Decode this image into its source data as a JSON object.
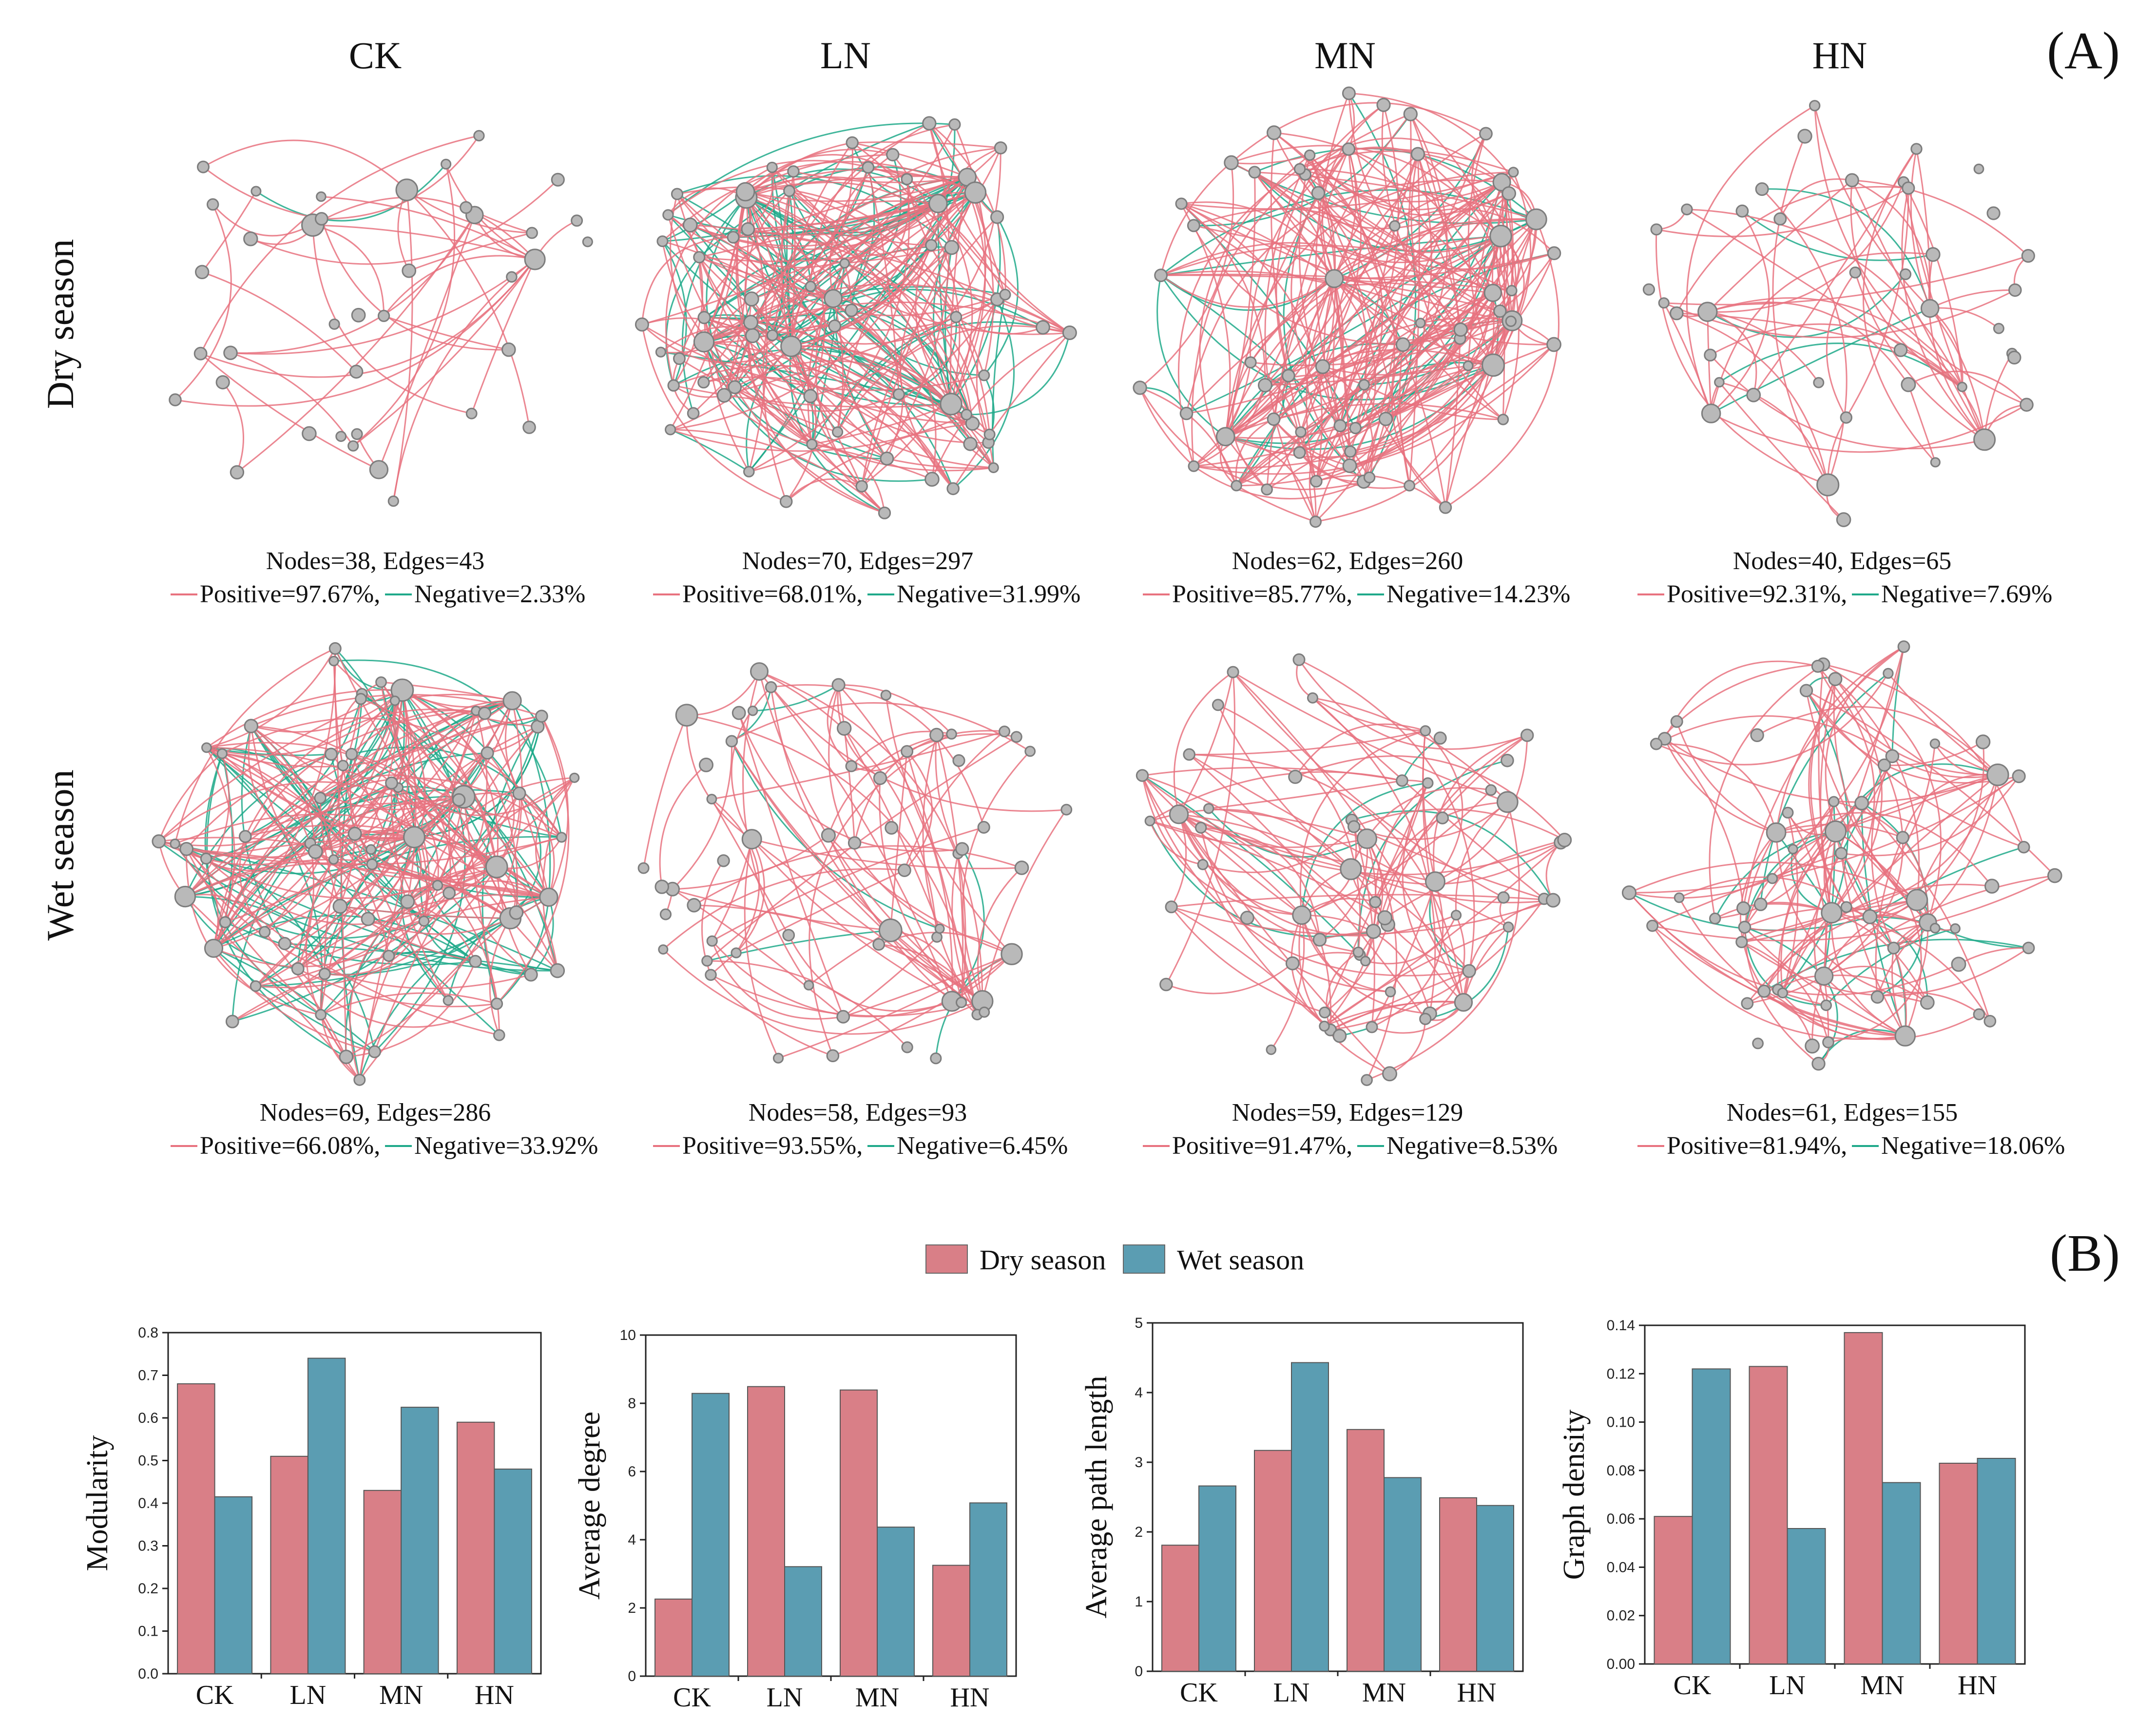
{
  "panel_labels": {
    "a": "(A)",
    "b": "(B)"
  },
  "columns": [
    "CK",
    "LN",
    "MN",
    "HN"
  ],
  "rows": [
    "Dry season",
    "Wet season"
  ],
  "colors": {
    "positive": "#e8727f",
    "negative": "#1fa98a",
    "node_fill": "#b9b9b9",
    "node_stroke": "#7d7d7d",
    "dry": "#d97f87",
    "wet": "#5b9db2"
  },
  "networks": [
    {
      "row": "Dry season",
      "group": "CK",
      "nodes": 38,
      "edges": 43,
      "positive_pct": 97.67,
      "negative_pct": 2.33,
      "stats": "Nodes=38, Edges=43",
      "legend_pos": "Positive=97.67%,",
      "legend_neg": "Negative=2.33%"
    },
    {
      "row": "Dry season",
      "group": "LN",
      "nodes": 70,
      "edges": 297,
      "positive_pct": 68.01,
      "negative_pct": 31.99,
      "stats": "Nodes=70, Edges=297",
      "legend_pos": "Positive=68.01%,",
      "legend_neg": "Negative=31.99%"
    },
    {
      "row": "Dry season",
      "group": "MN",
      "nodes": 62,
      "edges": 260,
      "positive_pct": 85.77,
      "negative_pct": 14.23,
      "stats": "Nodes=62, Edges=260",
      "legend_pos": "Positive=85.77%,",
      "legend_neg": "Negative=14.23%"
    },
    {
      "row": "Dry season",
      "group": "HN",
      "nodes": 40,
      "edges": 65,
      "positive_pct": 92.31,
      "negative_pct": 7.69,
      "stats": "Nodes=40, Edges=65",
      "legend_pos": "Positive=92.31%,",
      "legend_neg": "Negative=7.69%"
    },
    {
      "row": "Wet season",
      "group": "CK",
      "nodes": 69,
      "edges": 286,
      "positive_pct": 66.08,
      "negative_pct": 33.92,
      "stats": "Nodes=69, Edges=286",
      "legend_pos": "Positive=66.08%,",
      "legend_neg": "Negative=33.92%"
    },
    {
      "row": "Wet season",
      "group": "LN",
      "nodes": 58,
      "edges": 93,
      "positive_pct": 93.55,
      "negative_pct": 6.45,
      "stats": "Nodes=58, Edges=93",
      "legend_pos": "Positive=93.55%,",
      "legend_neg": "Negative=6.45%"
    },
    {
      "row": "Wet season",
      "group": "MN",
      "nodes": 59,
      "edges": 129,
      "positive_pct": 91.47,
      "negative_pct": 8.53,
      "stats": "Nodes=59, Edges=129",
      "legend_pos": "Positive=91.47%,",
      "legend_neg": "Negative=8.53%"
    },
    {
      "row": "Wet season",
      "group": "HN",
      "nodes": 61,
      "edges": 155,
      "positive_pct": 81.94,
      "negative_pct": 18.06,
      "stats": "Nodes=61, Edges=155",
      "legend_pos": "Positive=81.94%,",
      "legend_neg": "Negative=18.06%"
    }
  ],
  "legend": {
    "dry": "Dry season",
    "wet": "Wet season"
  },
  "chart_data": [
    {
      "type": "bar",
      "title": "",
      "xlabel": "",
      "ylabel": "Modularity",
      "categories": [
        "CK",
        "LN",
        "MN",
        "HN"
      ],
      "ylim": [
        0,
        0.8
      ],
      "yticks": [
        "0.0",
        "0.1",
        "0.2",
        "0.3",
        "0.4",
        "0.5",
        "0.6",
        "0.7",
        "0.8"
      ],
      "series": [
        {
          "name": "Dry season",
          "values": [
            0.68,
            0.51,
            0.43,
            0.59
          ]
        },
        {
          "name": "Wet season",
          "values": [
            0.415,
            0.74,
            0.625,
            0.48
          ]
        }
      ]
    },
    {
      "type": "bar",
      "title": "",
      "xlabel": "",
      "ylabel": "Average degree",
      "categories": [
        "CK",
        "LN",
        "MN",
        "HN"
      ],
      "ylim": [
        0,
        10
      ],
      "yticks": [
        "0",
        "2",
        "4",
        "6",
        "8",
        "10"
      ],
      "series": [
        {
          "name": "Dry season",
          "values": [
            2.26,
            8.49,
            8.39,
            3.25
          ]
        },
        {
          "name": "Wet season",
          "values": [
            8.29,
            3.21,
            4.37,
            5.08
          ]
        }
      ]
    },
    {
      "type": "bar",
      "title": "",
      "xlabel": "",
      "ylabel": "Average path length",
      "categories": [
        "CK",
        "LN",
        "MN",
        "HN"
      ],
      "ylim": [
        0,
        5
      ],
      "yticks": [
        "0",
        "1",
        "2",
        "3",
        "4",
        "5"
      ],
      "series": [
        {
          "name": "Dry season",
          "values": [
            1.81,
            3.17,
            3.47,
            2.49
          ]
        },
        {
          "name": "Wet season",
          "values": [
            2.66,
            4.43,
            2.78,
            2.38
          ]
        }
      ]
    },
    {
      "type": "bar",
      "title": "",
      "xlabel": "",
      "ylabel": "Graph density",
      "categories": [
        "CK",
        "LN",
        "MN",
        "HN"
      ],
      "ylim": [
        0,
        0.14
      ],
      "yticks": [
        "0.00",
        "0.02",
        "0.04",
        "0.06",
        "0.08",
        "0.10",
        "0.12",
        "0.14"
      ],
      "series": [
        {
          "name": "Dry season",
          "values": [
            0.061,
            0.123,
            0.137,
            0.083
          ]
        },
        {
          "name": "Wet season",
          "values": [
            0.122,
            0.056,
            0.075,
            0.085
          ]
        }
      ]
    }
  ]
}
